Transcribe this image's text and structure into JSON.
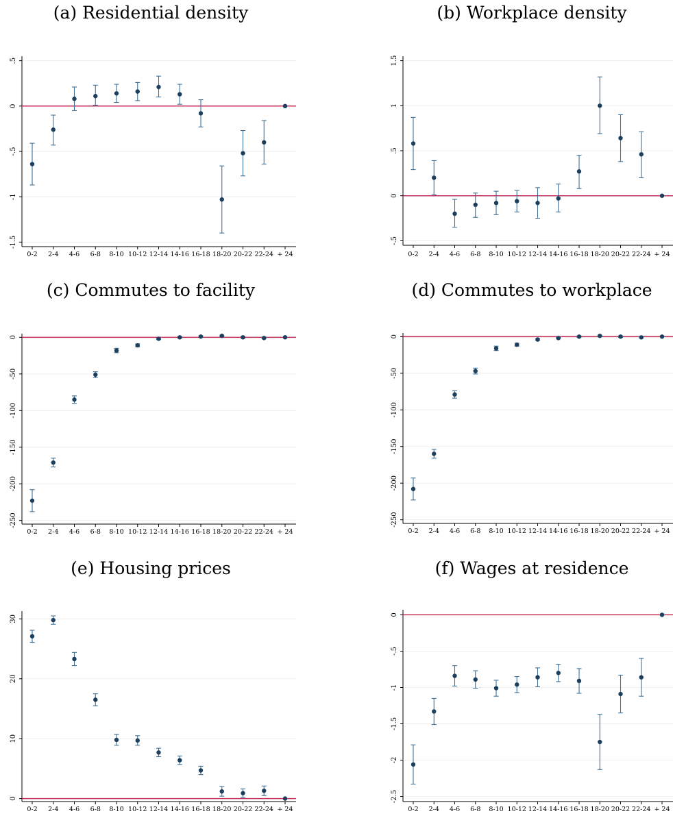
{
  "colors": {
    "marker": "#1c3f5e",
    "errorbar": "#3d6f96",
    "refline": "#c0305a",
    "grid": "#eeeeee",
    "axis": "#000000"
  },
  "chart_data": [
    {
      "type": "scatter",
      "title": "(a) Residential density",
      "categories": [
        "0-2",
        "2-4",
        "4-6",
        "6-8",
        "8-10",
        "10-12",
        "12-14",
        "14-16",
        "16-18",
        "18-20",
        "20-22",
        "22-24",
        "+ 24"
      ],
      "values": [
        -0.64,
        -0.26,
        0.08,
        0.11,
        0.14,
        0.16,
        0.21,
        0.13,
        -0.08,
        -1.03,
        -0.52,
        -0.4,
        0.0
      ],
      "lower": [
        -0.87,
        -0.43,
        -0.05,
        0.01,
        0.04,
        0.06,
        0.1,
        0.02,
        -0.23,
        -1.4,
        -0.77,
        -0.64,
        0.0
      ],
      "upper": [
        -0.41,
        -0.1,
        0.21,
        0.23,
        0.24,
        0.26,
        0.33,
        0.24,
        0.07,
        -0.66,
        -0.27,
        -0.16,
        0.0
      ],
      "yticks": [
        0.5,
        0,
        -0.5,
        -1,
        -1.5
      ],
      "ytick_labels": [
        ".5",
        "0",
        "-.5",
        "-1",
        "-1.5"
      ],
      "ylim": [
        -1.55,
        0.55
      ],
      "refline": 0,
      "grid": true
    },
    {
      "type": "scatter",
      "title": "(b) Workplace density",
      "categories": [
        "0-2",
        "2-4",
        "4-6",
        "6-8",
        "8-10",
        "10-12",
        "12-14",
        "14-16",
        "16-18",
        "18-20",
        "20-22",
        "22-24",
        "+ 24"
      ],
      "values": [
        0.58,
        0.2,
        -0.2,
        -0.1,
        -0.08,
        -0.06,
        -0.08,
        -0.03,
        0.27,
        1.0,
        0.64,
        0.46,
        0.0
      ],
      "lower": [
        0.29,
        0.01,
        -0.35,
        -0.24,
        -0.21,
        -0.18,
        -0.25,
        -0.18,
        0.08,
        0.69,
        0.38,
        0.2,
        0.0
      ],
      "upper": [
        0.87,
        0.39,
        -0.04,
        0.03,
        0.05,
        0.06,
        0.09,
        0.13,
        0.45,
        1.32,
        0.9,
        0.71,
        0.0
      ],
      "yticks": [
        1.5,
        1,
        0.5,
        0,
        -0.5
      ],
      "ytick_labels": [
        "1.5",
        "1",
        ".5",
        "0",
        "-.5"
      ],
      "ylim": [
        -0.55,
        1.55
      ],
      "refline": 0,
      "grid": true
    },
    {
      "type": "scatter",
      "title": "(c) Commutes to facility",
      "categories": [
        "0-2",
        "2-4",
        "4-6",
        "6-8",
        "8-10",
        "10-12",
        "12-14",
        "14-16",
        "16-18",
        "18-20",
        "20-22",
        "22-24",
        "+ 24"
      ],
      "values": [
        -223,
        -171,
        -85,
        -51,
        -18,
        -11,
        -2,
        0,
        1,
        2,
        0,
        -1,
        0
      ],
      "lower": [
        -238,
        -177,
        -90,
        -55,
        -21,
        -13,
        -3,
        -1,
        0,
        1,
        -1,
        -2,
        0
      ],
      "upper": [
        -208,
        -165,
        -80,
        -47,
        -15,
        -9,
        -1,
        1,
        2,
        3,
        1,
        0,
        0
      ],
      "yticks": [
        0,
        -50,
        -100,
        -150,
        -200,
        -250
      ],
      "ytick_labels": [
        "0",
        "-50",
        "-100",
        "-150",
        "-200",
        "-250"
      ],
      "ylim": [
        -255,
        5
      ],
      "refline": 0,
      "grid": true
    },
    {
      "type": "scatter",
      "title": "(d) Commutes to workplace",
      "categories": [
        "0-2",
        "2-4",
        "4-6",
        "6-8",
        "8-10",
        "10-12",
        "12-14",
        "14-16",
        "16-18",
        "18-20",
        "20-22",
        "22-24",
        "+ 24"
      ],
      "values": [
        -208,
        -160,
        -79,
        -47,
        -16,
        -11,
        -4,
        -2,
        0,
        1,
        0,
        -1,
        0
      ],
      "lower": [
        -223,
        -166,
        -84,
        -51,
        -19,
        -13,
        -5,
        -3,
        -1,
        0,
        -1,
        -2,
        0
      ],
      "upper": [
        -193,
        -154,
        -74,
        -43,
        -13,
        -9,
        -3,
        -1,
        1,
        2,
        1,
        0,
        0
      ],
      "yticks": [
        0,
        -50,
        -100,
        -150,
        -200,
        -250
      ],
      "ytick_labels": [
        "0",
        "-50",
        "-100",
        "-150",
        "-200",
        "-250"
      ],
      "ylim": [
        -255,
        5
      ],
      "refline": 0,
      "grid": true
    },
    {
      "type": "scatter",
      "title": "(e) Housing prices",
      "categories": [
        "0-2",
        "2-4",
        "4-6",
        "6-8",
        "8-10",
        "10-12",
        "12-14",
        "14-16",
        "16-18",
        "18-20",
        "20-22",
        "22-24",
        "+ 24"
      ],
      "values": [
        27.1,
        29.8,
        23.3,
        16.5,
        9.8,
        9.7,
        7.7,
        6.4,
        4.7,
        1.2,
        0.9,
        1.3,
        0.0
      ],
      "lower": [
        26.1,
        29.1,
        22.2,
        15.5,
        8.9,
        8.9,
        7.0,
        5.7,
        4.0,
        0.4,
        0.2,
        0.5,
        0.0
      ],
      "upper": [
        28.1,
        30.5,
        24.4,
        17.5,
        10.7,
        10.5,
        8.4,
        7.1,
        5.4,
        2.0,
        1.6,
        2.1,
        0.0
      ],
      "yticks": [
        30,
        20,
        10,
        0
      ],
      "ytick_labels": [
        "30",
        "20",
        "10",
        "0"
      ],
      "ylim": [
        -0.5,
        31.3
      ],
      "refline": 0,
      "grid": true
    },
    {
      "type": "scatter",
      "title": "(f) Wages at residence",
      "categories": [
        "0-2",
        "2-4",
        "4-6",
        "6-8",
        "8-10",
        "10-12",
        "12-14",
        "14-16",
        "16-18",
        "18-20",
        "20-22",
        "22-24",
        "+ 24"
      ],
      "values": [
        -2.06,
        -1.33,
        -0.84,
        -0.89,
        -1.01,
        -0.96,
        -0.86,
        -0.8,
        -0.91,
        -1.75,
        -1.09,
        -0.86,
        0.0
      ],
      "lower": [
        -2.33,
        -1.51,
        -0.98,
        -1.01,
        -1.12,
        -1.07,
        -0.99,
        -0.92,
        -1.08,
        -2.13,
        -1.35,
        -1.12,
        0.0
      ],
      "upper": [
        -1.79,
        -1.15,
        -0.7,
        -0.77,
        -0.9,
        -0.85,
        -0.73,
        -0.68,
        -0.74,
        -1.37,
        -0.83,
        -0.6,
        0.0
      ],
      "yticks": [
        0,
        -0.5,
        -1,
        -1.5,
        -2,
        -2.5
      ],
      "ytick_labels": [
        "0",
        "-.5",
        "-1",
        "-1.5",
        "-2",
        "-2.5"
      ],
      "ylim": [
        -2.57,
        0.07
      ],
      "refline": 0,
      "grid": true
    }
  ]
}
